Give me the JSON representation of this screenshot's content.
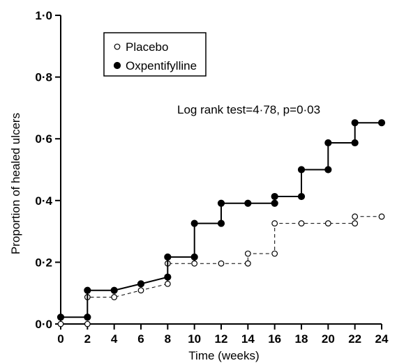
{
  "chart_data": {
    "type": "line",
    "step": true,
    "xlabel": "Time (weeks)",
    "ylabel": "Proportion of healed ulcers",
    "xlim": [
      0,
      24
    ],
    "ylim": [
      0,
      1.0
    ],
    "xticks": [
      0,
      2,
      4,
      6,
      8,
      10,
      12,
      14,
      16,
      18,
      20,
      22,
      24
    ],
    "xtick_labels": [
      "0",
      "2",
      "4",
      "6",
      "8",
      "10",
      "12",
      "14",
      "16",
      "18",
      "20",
      "22",
      "24"
    ],
    "yticks": [
      0,
      0.2,
      0.4,
      0.6,
      0.8,
      1.0
    ],
    "ytick_labels": [
      "0·0",
      "0·2",
      "0·4",
      "0·6",
      "0·8",
      "1·0"
    ],
    "grid": false,
    "legend_position": "top-left",
    "annotation": "Log rank test=4·78, p=0·03",
    "series": [
      {
        "name": "Placebo",
        "marker": "open-circle",
        "line_style": "dashed",
        "color": "#000000",
        "x": [
          0,
          2,
          2,
          4,
          6,
          8,
          8,
          10,
          12,
          14,
          14,
          16,
          16,
          18,
          20,
          22,
          22,
          24
        ],
        "y": [
          0.0,
          0.0,
          0.087,
          0.087,
          0.109,
          0.13,
          0.196,
          0.196,
          0.196,
          0.196,
          0.228,
          0.228,
          0.326,
          0.326,
          0.326,
          0.326,
          0.348,
          0.348
        ]
      },
      {
        "name": "Oxpentifylline",
        "marker": "filled-circle",
        "line_style": "solid",
        "color": "#000000",
        "x": [
          0,
          2,
          2,
          4,
          6,
          8,
          8,
          10,
          10,
          12,
          12,
          14,
          16,
          16,
          18,
          18,
          20,
          20,
          22,
          22,
          24
        ],
        "y": [
          0.022,
          0.022,
          0.109,
          0.109,
          0.13,
          0.152,
          0.217,
          0.217,
          0.326,
          0.326,
          0.391,
          0.391,
          0.391,
          0.413,
          0.413,
          0.5,
          0.5,
          0.587,
          0.587,
          0.652,
          0.652
        ]
      }
    ]
  }
}
